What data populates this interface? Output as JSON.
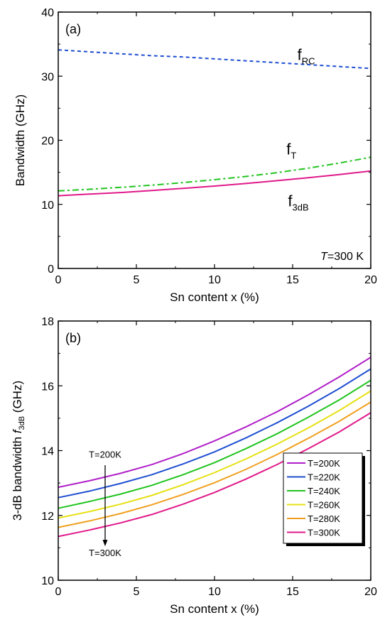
{
  "chart_data": [
    {
      "type": "line",
      "panel_label": "(a)",
      "xlabel": "Sn content x (%)",
      "ylabel": "Bandwidth (GHz)",
      "xlim": [
        0,
        20
      ],
      "ylim": [
        0,
        40
      ],
      "xticks": [
        "0",
        "5",
        "10",
        "15",
        "20"
      ],
      "yticks": [
        "0",
        "10",
        "20",
        "30",
        "40"
      ],
      "grid": false,
      "annotation": {
        "italic": "T",
        "rest": "=300 K"
      },
      "x": [
        0,
        2,
        4,
        6,
        8,
        10,
        12,
        14,
        16,
        18,
        20
      ],
      "series": [
        {
          "name": "f",
          "name_sub": "RC",
          "color": "#1f4fd1",
          "style": "dashed",
          "values": [
            34.1,
            33.8,
            33.5,
            33.2,
            33.0,
            32.7,
            32.4,
            32.1,
            31.8,
            31.5,
            31.2
          ]
        },
        {
          "name": "f",
          "name_sub": "T",
          "color": "#22c41f",
          "style": "dashdot",
          "values": [
            12.1,
            12.35,
            12.65,
            13.0,
            13.4,
            13.85,
            14.35,
            14.95,
            15.65,
            16.45,
            17.35
          ]
        },
        {
          "name": "f",
          "name_sub": "3dB",
          "color": "#e0198a",
          "style": "solid",
          "values": [
            11.35,
            11.6,
            11.85,
            12.15,
            12.5,
            12.85,
            13.25,
            13.7,
            14.15,
            14.65,
            15.2
          ]
        }
      ]
    },
    {
      "type": "line",
      "panel_label": "(b)",
      "xlabel": "Sn content x (%)",
      "ylabel_prefix": "3-dB bandwidth ",
      "ylabel_italic": "f",
      "ylabel_sub": "3dB",
      "ylabel_suffix": " (GHz)",
      "xlim": [
        0,
        20
      ],
      "ylim": [
        10,
        18
      ],
      "xticks": [
        "0",
        "5",
        "10",
        "15",
        "20"
      ],
      "yticks": [
        "10",
        "12",
        "14",
        "16",
        "18"
      ],
      "grid": false,
      "legend_position": "lower-right",
      "arrow_annotation": {
        "top": "T=200K",
        "bottom": "T=300K",
        "x": 3
      },
      "x": [
        0,
        2,
        4,
        6,
        8,
        10,
        12,
        14,
        16,
        18,
        20
      ],
      "series": [
        {
          "name": "T=200K",
          "color": "#b020c8",
          "values": [
            12.87,
            13.07,
            13.3,
            13.57,
            13.91,
            14.3,
            14.73,
            15.2,
            15.72,
            16.28,
            16.88
          ]
        },
        {
          "name": "T=220K",
          "color": "#1f4fd1",
          "values": [
            12.55,
            12.75,
            12.99,
            13.26,
            13.59,
            13.96,
            14.39,
            14.86,
            15.37,
            15.92,
            16.52
          ]
        },
        {
          "name": "T=240K",
          "color": "#22c41f",
          "values": [
            12.22,
            12.43,
            12.66,
            12.93,
            13.26,
            13.63,
            14.06,
            14.52,
            15.03,
            15.57,
            16.17
          ]
        },
        {
          "name": "T=260K",
          "color": "#e6e012",
          "values": [
            11.92,
            12.12,
            12.35,
            12.62,
            12.95,
            13.32,
            13.74,
            14.2,
            14.7,
            15.24,
            15.84
          ]
        },
        {
          "name": "T=280K",
          "color": "#f0a020",
          "values": [
            11.63,
            11.83,
            12.06,
            12.33,
            12.65,
            13.01,
            13.42,
            13.88,
            14.38,
            14.91,
            15.5
          ]
        },
        {
          "name": "T=300K",
          "color": "#e0198a",
          "values": [
            11.35,
            11.55,
            11.77,
            12.03,
            12.35,
            12.71,
            13.12,
            13.57,
            14.06,
            14.58,
            15.17
          ]
        }
      ]
    }
  ]
}
